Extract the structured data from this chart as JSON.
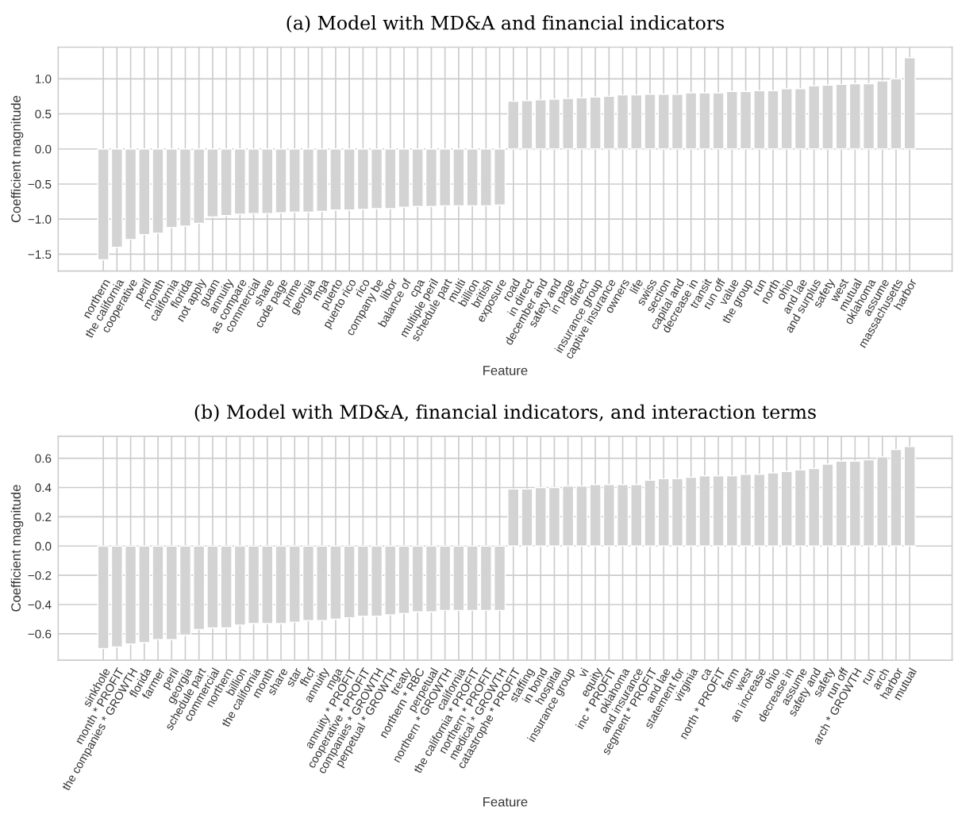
{
  "chart_data": [
    {
      "type": "bar",
      "title": "(a) Model with MD&A and financial indicators",
      "xlabel": "Feature",
      "ylabel": "Coefficient magnitude",
      "color": "#d3d3d3",
      "grid": true,
      "legend": false,
      "categories": [
        "northern",
        "the california",
        "cooperative",
        "peril",
        "month",
        "california",
        "florida",
        "not apply",
        "guam",
        "annuity",
        "as compare",
        "commercial",
        "share",
        "code page",
        "prime",
        "georgia",
        "mga",
        "puerto",
        "puerto rico",
        "rico",
        "company be",
        "libor",
        "balance of",
        "cpa",
        "multiple peril",
        "schedule part",
        "multi",
        "billion",
        "british",
        "exposure",
        "road",
        "in direct",
        "december and",
        "safety and",
        "in page",
        "direct",
        "insurance group",
        "captive insurance",
        "owners",
        "life",
        "swiss",
        "section",
        "capital and",
        "decrease in",
        "transit",
        "run off",
        "value",
        "the group",
        "run",
        "north",
        "ohio",
        "and lae",
        "and surplus",
        "safety",
        "west",
        "mutual",
        "oklahoma",
        "assume",
        "massachusetts",
        "harbor"
      ],
      "values": [
        -1.58,
        -1.4,
        -1.29,
        -1.22,
        -1.2,
        -1.12,
        -1.1,
        -1.06,
        -0.97,
        -0.95,
        -0.93,
        -0.92,
        -0.92,
        -0.91,
        -0.9,
        -0.9,
        -0.89,
        -0.87,
        -0.87,
        -0.86,
        -0.85,
        -0.85,
        -0.83,
        -0.82,
        -0.82,
        -0.81,
        -0.81,
        -0.81,
        -0.81,
        -0.8,
        0.68,
        0.69,
        0.7,
        0.71,
        0.72,
        0.73,
        0.74,
        0.75,
        0.77,
        0.77,
        0.78,
        0.78,
        0.78,
        0.8,
        0.8,
        0.8,
        0.82,
        0.82,
        0.83,
        0.83,
        0.86,
        0.86,
        0.9,
        0.91,
        0.92,
        0.93,
        0.93,
        0.97,
        1.0,
        1.3
      ],
      "ylim": [
        -1.74,
        1.45
      ],
      "yticks": [
        {
          "value": -1.5,
          "label": "−1.5"
        },
        {
          "value": -1.0,
          "label": "−1.0"
        },
        {
          "value": -0.5,
          "label": "−0.5"
        },
        {
          "value": 0.0,
          "label": "0.0"
        },
        0.5,
        {
          "value": 1.0,
          "label": "1.0"
        }
      ]
    },
    {
      "type": "bar",
      "title": "(b) Model with MD&A, financial indicators, and interaction terms",
      "xlabel": "Feature",
      "ylabel": "Coefficient magnitude",
      "color": "#d3d3d3",
      "grid": true,
      "legend": false,
      "categories": [
        "sinkhole",
        "month * PROFIT",
        "the companies * GROWTH",
        "florida",
        "farmer",
        "peril",
        "georgia",
        "schedule part",
        "commercial",
        "northern",
        "billion",
        "the california",
        "month",
        "share",
        "star",
        "fhcf",
        "annuity",
        "mga",
        "annuity * PROFIT",
        "cooperative * PROFIT",
        "companies * GROWTH",
        "perpetual * GROWTH",
        "treaty",
        "northern * RBC",
        "perpetual",
        "northern * GROWTH",
        "california",
        "the california * PROFIT",
        "northern * PROFIT",
        "medical * GROWTH",
        "catastrophe * PROFIT",
        "staffing",
        "in bond",
        "hospital",
        "insurance group",
        "vi",
        "equity",
        "inc * PROFIT",
        "oklahoma",
        "and insurance",
        "segment * PROFIT",
        "and lae",
        "statement for",
        "virginia",
        "ca",
        "north * PROFIT",
        "farm",
        "west",
        "an increase",
        "ohio",
        "decrease in",
        "assume",
        "safety and",
        "safety",
        "run off",
        "arch * GROWTH",
        "run",
        "arch",
        "harbor",
        "mutual"
      ],
      "values": [
        -0.7,
        -0.69,
        -0.67,
        -0.66,
        -0.64,
        -0.64,
        -0.61,
        -0.57,
        -0.56,
        -0.56,
        -0.54,
        -0.53,
        -0.53,
        -0.53,
        -0.52,
        -0.51,
        -0.51,
        -0.5,
        -0.49,
        -0.48,
        -0.48,
        -0.47,
        -0.46,
        -0.45,
        -0.45,
        -0.44,
        -0.44,
        -0.44,
        -0.44,
        -0.44,
        0.39,
        0.39,
        0.4,
        0.4,
        0.41,
        0.41,
        0.42,
        0.42,
        0.42,
        0.42,
        0.45,
        0.46,
        0.46,
        0.47,
        0.48,
        0.48,
        0.48,
        0.49,
        0.49,
        0.5,
        0.51,
        0.52,
        0.53,
        0.56,
        0.58,
        0.58,
        0.59,
        0.61,
        0.66,
        0.68
      ],
      "ylim": [
        -0.78,
        0.75
      ],
      "yticks": [
        {
          "value": -0.6,
          "label": "−0.6"
        },
        {
          "value": -0.4,
          "label": "−0.4"
        },
        {
          "value": -0.2,
          "label": "−0.2"
        },
        {
          "value": 0.0,
          "label": "0.0"
        },
        0.2,
        0.4,
        0.6
      ]
    }
  ]
}
